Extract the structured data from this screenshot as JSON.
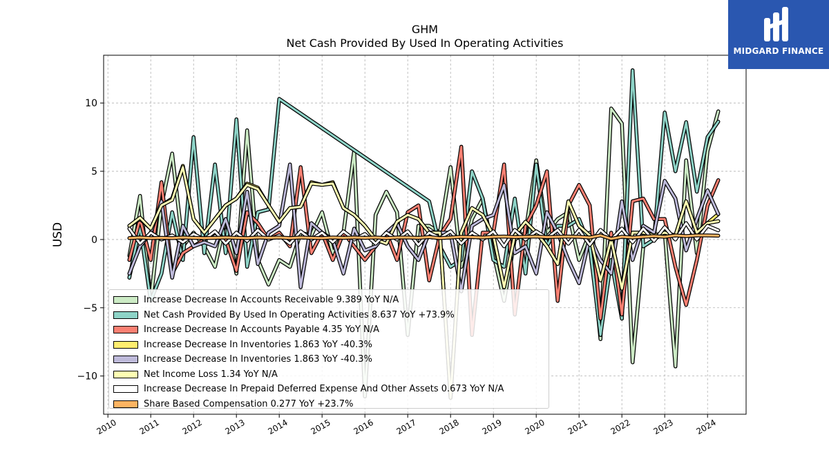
{
  "header": {
    "title": "GHM",
    "subtitle": "Net Cash Provided By Used In Operating Activities"
  },
  "logo": {
    "text": "MIDGARD FINANCE",
    "bg_color": "#2a57b0"
  },
  "chart_data": {
    "type": "line",
    "ylabel": "USD",
    "xlim": [
      2009.9,
      2024.9
    ],
    "ylim": [
      -12.8,
      13.5
    ],
    "xticks": [
      2010,
      2011,
      2012,
      2013,
      2014,
      2015,
      2016,
      2017,
      2018,
      2019,
      2020,
      2021,
      2022,
      2023,
      2024
    ],
    "yticks": [
      -10,
      -5,
      0,
      5,
      10
    ],
    "grid": true,
    "legend_position": "lower-left",
    "series": [
      {
        "name": "Increase Decrease In Accounts Receivable",
        "legend": "Increase Decrease In Accounts Receivable  9.389 YoY N/A",
        "color": "#ccebc5",
        "x": [
          2010.5,
          2010.75,
          2011.0,
          2011.25,
          2011.5,
          2011.75,
          2012.0,
          2012.25,
          2012.5,
          2012.75,
          2013.0,
          2013.25,
          2013.5,
          2013.75,
          2014.0,
          2014.25,
          2014.5,
          2014.75,
          2015.0,
          2015.25,
          2015.5,
          2015.75,
          2016.0,
          2016.25,
          2016.5,
          2016.75,
          2017.0,
          2017.25,
          2017.5,
          2017.75,
          2018.0,
          2018.25,
          2018.5,
          2018.75,
          2019.0,
          2019.25,
          2019.5,
          2019.75,
          2020.0,
          2020.25,
          2020.5,
          2020.75,
          2021.0,
          2021.25,
          2021.5,
          2021.75,
          2022.0,
          2022.25,
          2022.5,
          2022.75,
          2023.0,
          2023.25,
          2023.5,
          2023.75,
          2024.0,
          2024.25
        ],
        "y": [
          -1.2,
          3.2,
          -4.5,
          2.5,
          6.3,
          -0.5,
          0.5,
          -0.5,
          -2.0,
          1.5,
          -2.5,
          8.0,
          -1.5,
          -3.3,
          -1.5,
          -2.0,
          0.5,
          0.3,
          2.0,
          -1.0,
          0.5,
          6.5,
          -11.5,
          1.8,
          3.5,
          2.0,
          -7.0,
          1.0,
          1.0,
          0.5,
          5.3,
          -2.0,
          1.5,
          3.0,
          -1.0,
          -4.5,
          0.0,
          0.5,
          5.8,
          0.5,
          1.5,
          2.0,
          -1.5,
          0.5,
          -7.3,
          9.6,
          8.5,
          -9.0,
          -0.5,
          0.0,
          0.5,
          -9.3,
          5.8,
          -1.0,
          6.5,
          9.389
        ]
      },
      {
        "name": "Net Cash Provided By Used In Operating Activities",
        "legend": "Net Cash Provided By Used In Operating Activities  8.637 YoY +73.9%",
        "color": "#8dd3c7",
        "x": [
          2010.5,
          2010.75,
          2011.0,
          2011.25,
          2011.5,
          2011.75,
          2012.0,
          2012.25,
          2012.5,
          2012.75,
          2013.0,
          2013.25,
          2013.5,
          2013.75,
          2014.0,
          2017.5,
          2017.75,
          2018.0,
          2018.25,
          2018.5,
          2018.75,
          2019.0,
          2019.25,
          2019.5,
          2019.75,
          2020.0,
          2020.25,
          2020.5,
          2020.75,
          2021.0,
          2021.25,
          2021.5,
          2021.75,
          2022.0,
          2022.25,
          2022.5,
          2022.75,
          2023.0,
          2023.25,
          2023.5,
          2023.75,
          2024.0,
          2024.25
        ],
        "y": [
          -2.8,
          1.0,
          -4.5,
          -2.5,
          2.0,
          -1.5,
          7.5,
          -1.0,
          5.5,
          -1.0,
          8.8,
          -2.0,
          2.0,
          2.2,
          10.3,
          2.8,
          -0.5,
          -2.0,
          -1.5,
          5.0,
          3.0,
          -1.5,
          -2.0,
          3.0,
          -2.5,
          5.5,
          -0.5,
          1.0,
          1.0,
          1.5,
          -0.5,
          -7.0,
          -1.5,
          -5.8,
          12.4,
          -0.5,
          0.0,
          9.3,
          5.0,
          8.6,
          3.5,
          7.5,
          8.637
        ]
      },
      {
        "name": "Increase Decrease In Accounts Payable",
        "legend": "Increase Decrease In Accounts Payable  4.35 YoY N/A",
        "color": "#fb8072",
        "x": [
          2010.5,
          2010.75,
          2011.0,
          2011.25,
          2011.5,
          2011.75,
          2012.0,
          2012.25,
          2012.5,
          2012.75,
          2013.0,
          2013.25,
          2013.5,
          2013.75,
          2014.0,
          2014.25,
          2014.5,
          2014.75,
          2015.0,
          2015.25,
          2015.5,
          2015.75,
          2016.0,
          2016.25,
          2016.5,
          2016.75,
          2017.0,
          2017.25,
          2017.5,
          2017.75,
          2018.0,
          2018.25,
          2018.5,
          2018.75,
          2019.0,
          2019.25,
          2019.5,
          2019.75,
          2020.0,
          2020.25,
          2020.5,
          2020.75,
          2021.0,
          2021.25,
          2021.5,
          2021.75,
          2022.0,
          2022.25,
          2022.5,
          2022.75,
          2023.0,
          2023.25,
          2023.5,
          2023.75,
          2024.0,
          2024.25
        ],
        "y": [
          -1.5,
          1.5,
          -1.5,
          4.2,
          -2.5,
          -1.0,
          -0.5,
          0.0,
          0.5,
          0.0,
          -2.3,
          2.0,
          1.2,
          0.0,
          0.5,
          -0.5,
          5.3,
          -1.0,
          0.5,
          -1.5,
          0.5,
          -0.5,
          -1.5,
          -0.5,
          0.5,
          -1.5,
          2.0,
          2.5,
          -3.0,
          0.3,
          1.5,
          6.8,
          -7.0,
          0.5,
          0.5,
          5.5,
          -5.5,
          1.0,
          2.5,
          5.0,
          -4.5,
          2.5,
          4.0,
          2.5,
          -5.8,
          0.5,
          -5.5,
          2.8,
          3.0,
          1.5,
          1.5,
          -2.0,
          -4.8,
          -1.5,
          2.5,
          4.35
        ]
      },
      {
        "name": "Increase Decrease In Inventories",
        "legend": "Increase Decrease In Inventories  1.863 YoY -40.3%",
        "color": "#ffed6f",
        "x": [
          2010.5,
          2010.75,
          2011.0,
          2011.25,
          2011.5,
          2011.75,
          2012.0,
          2012.25,
          2012.5,
          2012.75,
          2013.0,
          2013.25,
          2013.5,
          2013.75,
          2014.0,
          2014.25,
          2014.5,
          2014.75,
          2015.0,
          2015.25,
          2015.5,
          2015.75,
          2016.0,
          2016.25,
          2016.5,
          2016.75,
          2017.0,
          2017.25,
          2017.5,
          2017.75,
          2018.0,
          2018.25,
          2018.5,
          2018.75,
          2019.0,
          2019.25,
          2019.5,
          2019.75,
          2020.0,
          2020.25,
          2020.5,
          2020.75,
          2021.0,
          2021.25,
          2021.5,
          2021.75,
          2022.0,
          2022.25,
          2022.5,
          2022.75,
          2023.0,
          2023.25,
          2023.5,
          2023.75,
          2024.0,
          2024.25
        ],
        "y": [
          1.0,
          1.5,
          0.8,
          2.5,
          3.0,
          5.4,
          1.5,
          0.5,
          1.5,
          2.5,
          3.0,
          4.1,
          3.8,
          2.5,
          1.3,
          2.3,
          2.4,
          4.2,
          4.0,
          4.2,
          2.3,
          1.8,
          1.0,
          0.0,
          -0.3,
          1.3,
          1.8,
          1.5,
          0.5,
          0.5,
          -11.5,
          0.5,
          2.3,
          1.8,
          0.3,
          -3.5,
          0.3,
          1.3,
          0.5,
          -0.5,
          -1.8,
          2.8,
          1.0,
          0.3,
          -3.0,
          0.0,
          -3.5,
          0.5,
          0.5,
          0.3,
          0.5,
          0.3,
          2.8,
          0.5,
          1.2,
          1.863
        ]
      },
      {
        "name": "Increase Decrease In Inventories",
        "legend": "Increase Decrease In Inventories  1.863 YoY -40.3%",
        "color": "#bebada",
        "x": [
          2010.5,
          2010.75,
          2011.0,
          2011.25,
          2011.5,
          2011.75,
          2012.0,
          2012.25,
          2012.5,
          2012.75,
          2013.0,
          2013.25,
          2013.5,
          2013.75,
          2014.0,
          2014.25,
          2014.5,
          2014.75,
          2015.0,
          2015.25,
          2015.5,
          2015.75,
          2016.0,
          2016.25,
          2016.5,
          2016.75,
          2017.0,
          2017.25,
          2017.5,
          2017.75,
          2018.0,
          2018.25,
          2018.5,
          2018.75,
          2019.0,
          2019.25,
          2019.5,
          2019.75,
          2020.0,
          2020.25,
          2020.5,
          2020.75,
          2021.0,
          2021.25,
          2021.5,
          2021.75,
          2022.0,
          2022.25,
          2022.5,
          2022.75,
          2023.0,
          2023.25,
          2023.5,
          2023.75,
          2024.0,
          2024.25
        ],
        "y": [
          -2.5,
          -0.5,
          0.5,
          2.8,
          -2.8,
          1.0,
          -0.5,
          -0.2,
          -0.5,
          1.5,
          -1.0,
          3.5,
          -1.8,
          0.5,
          1.0,
          5.5,
          -3.5,
          1.2,
          0.5,
          0.0,
          -2.5,
          0.8,
          -0.8,
          -0.5,
          0.5,
          1.2,
          -0.5,
          -1.5,
          0.5,
          0.5,
          0.5,
          -3.8,
          1.0,
          1.5,
          1.8,
          4.0,
          -1.0,
          -0.5,
          -2.5,
          2.0,
          0.5,
          -1.5,
          -3.2,
          0.2,
          -1.5,
          -2.5,
          2.8,
          -1.5,
          1.0,
          0.5,
          4.3,
          3.0,
          -0.8,
          1.5,
          3.6,
          1.863
        ]
      },
      {
        "name": "Net Income Loss",
        "legend": "Net Income Loss  1.34 YoY N/A",
        "color": "#ffffb3",
        "x": [
          2010.5,
          2010.75,
          2011.0,
          2011.25,
          2011.5,
          2011.75,
          2012.0,
          2012.25,
          2012.5,
          2012.75,
          2013.0,
          2013.25,
          2013.5,
          2013.75,
          2014.0,
          2014.25,
          2014.5,
          2014.75,
          2015.0,
          2015.25,
          2015.5,
          2015.75,
          2016.0,
          2016.25,
          2016.5,
          2016.75,
          2017.0,
          2017.25,
          2017.5,
          2017.75,
          2018.0,
          2018.25,
          2018.5,
          2018.75,
          2019.0,
          2019.25,
          2019.5,
          2019.75,
          2020.0,
          2020.25,
          2020.5,
          2020.75,
          2021.0,
          2021.25,
          2021.5,
          2021.75,
          2022.0,
          2022.25,
          2022.5,
          2022.75,
          2023.0,
          2023.25,
          2023.5,
          2023.75,
          2024.0,
          2024.25
        ],
        "y": [
          1.0,
          1.6,
          0.8,
          2.5,
          2.9,
          5.3,
          1.5,
          0.5,
          1.5,
          2.5,
          3.0,
          4.0,
          3.7,
          2.5,
          1.3,
          2.3,
          2.4,
          4.1,
          4.0,
          4.1,
          2.3,
          1.8,
          1.0,
          0.0,
          -0.3,
          1.3,
          1.8,
          1.5,
          0.5,
          0.5,
          -11.6,
          0.5,
          2.3,
          1.8,
          0.3,
          -3.5,
          0.3,
          1.3,
          0.5,
          -0.5,
          -1.8,
          2.8,
          1.0,
          0.3,
          -3.0,
          0.0,
          -3.6,
          0.5,
          0.5,
          0.3,
          0.5,
          0.3,
          2.8,
          0.5,
          1.2,
          1.34
        ]
      },
      {
        "name": "Increase Decrease In Prepaid Deferred Expense And Other Assets",
        "legend": "Increase Decrease In Prepaid Deferred Expense And Other Assets  0.673 YoY N/A",
        "color": "#ffffff",
        "x": [
          2010.5,
          2010.75,
          2011.0,
          2011.25,
          2011.5,
          2011.75,
          2012.0,
          2012.25,
          2012.5,
          2012.75,
          2013.0,
          2013.25,
          2013.5,
          2013.75,
          2014.0,
          2014.25,
          2014.5,
          2014.75,
          2015.0,
          2015.25,
          2015.5,
          2015.75,
          2016.0,
          2016.25,
          2016.5,
          2016.75,
          2017.0,
          2017.25,
          2017.5,
          2017.75,
          2018.0,
          2018.25,
          2018.5,
          2018.75,
          2019.0,
          2019.25,
          2019.5,
          2019.75,
          2020.0,
          2020.25,
          2020.5,
          2020.75,
          2021.0,
          2021.25,
          2021.5,
          2021.75,
          2022.0,
          2022.25,
          2022.5,
          2022.75,
          2023.0,
          2023.25,
          2023.5,
          2023.75,
          2024.0,
          2024.25
        ],
        "y": [
          0.8,
          -0.3,
          0.5,
          0.0,
          0.3,
          -0.2,
          0.4,
          0.0,
          0.6,
          -0.3,
          0.5,
          -0.1,
          0.7,
          0.0,
          0.3,
          -0.3,
          0.6,
          0.0,
          0.5,
          -0.2,
          0.6,
          0.0,
          0.4,
          -0.3,
          0.5,
          0.0,
          0.6,
          -0.4,
          0.5,
          0.1,
          0.6,
          -0.3,
          0.5,
          0.0,
          0.6,
          -0.5,
          0.7,
          0.0,
          0.6,
          0.1,
          0.7,
          -0.3,
          0.7,
          -0.4,
          0.7,
          0.0,
          0.8,
          -0.2,
          0.8,
          -0.1,
          0.9,
          0.0,
          1.2,
          0.0,
          1.0,
          0.673
        ]
      },
      {
        "name": "Share Based Compensation",
        "legend": "Share Based Compensation  0.277 YoY +23.7%",
        "color": "#fdb462",
        "x": [
          2010.5,
          2010.75,
          2011.0,
          2011.25,
          2011.5,
          2011.75,
          2012.0,
          2012.25,
          2012.5,
          2012.75,
          2013.0,
          2013.25,
          2013.5,
          2013.75,
          2014.0,
          2014.25,
          2014.5,
          2014.75,
          2015.0,
          2015.25,
          2015.5,
          2015.75,
          2016.0,
          2016.25,
          2016.5,
          2016.75,
          2017.0,
          2017.25,
          2017.5,
          2017.75,
          2018.0,
          2018.25,
          2018.5,
          2018.75,
          2019.0,
          2019.25,
          2019.5,
          2019.75,
          2020.0,
          2020.25,
          2020.5,
          2020.75,
          2021.0,
          2021.25,
          2021.5,
          2021.75,
          2022.0,
          2022.25,
          2022.5,
          2022.75,
          2023.0,
          2023.25,
          2023.5,
          2023.75,
          2024.0,
          2024.25
        ],
        "y": [
          0.1,
          0.15,
          0.1,
          0.12,
          0.1,
          0.15,
          0.12,
          0.1,
          0.12,
          0.15,
          0.12,
          0.1,
          0.15,
          0.12,
          0.15,
          0.1,
          0.15,
          0.12,
          0.1,
          0.15,
          0.12,
          0.15,
          0.12,
          0.15,
          0.1,
          0.15,
          0.15,
          0.12,
          0.18,
          0.1,
          0.15,
          0.2,
          0.18,
          0.15,
          0.2,
          0.22,
          0.18,
          0.2,
          0.22,
          0.18,
          0.2,
          0.22,
          0.2,
          0.15,
          0.3,
          0.05,
          0.2,
          0.15,
          0.2,
          0.25,
          0.2,
          0.3,
          0.25,
          0.3,
          0.3,
          0.277
        ]
      }
    ]
  }
}
